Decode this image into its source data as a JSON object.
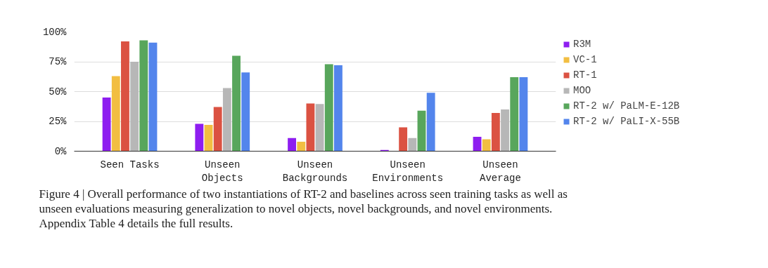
{
  "chart_data": {
    "type": "bar",
    "categories": [
      "Seen Tasks",
      "Unseen\nObjects",
      "Unseen\nBackgrounds",
      "Unseen\nEnvironments",
      "Unseen\nAverage"
    ],
    "series": [
      {
        "name": "R3M",
        "color": "#8e1ef0",
        "values": [
          45,
          23,
          11,
          1,
          12
        ]
      },
      {
        "name": "VC-1",
        "color": "#f2be42",
        "values": [
          63,
          22,
          8,
          0,
          10
        ]
      },
      {
        "name": "RT-1",
        "color": "#db5242",
        "values": [
          92,
          37,
          40,
          20,
          32
        ]
      },
      {
        "name": "MOO",
        "color": "#b7b7b7",
        "values": [
          75,
          53,
          39.5,
          11,
          35
        ]
      },
      {
        "name": "RT-2 w/ PaLM-E-12B",
        "color": "#58a65c",
        "values": [
          93,
          80,
          73,
          34,
          62
        ]
      },
      {
        "name": "RT-2 w/ PaLI-X-55B",
        "color": "#5385ec",
        "values": [
          91,
          66,
          72,
          49,
          62
        ]
      }
    ],
    "ylim": [
      0,
      100
    ],
    "yticks": [
      {
        "value": 0,
        "label": "0%"
      },
      {
        "value": 25,
        "label": "25%"
      },
      {
        "value": 50,
        "label": "50%"
      },
      {
        "value": 75,
        "label": "75%"
      },
      {
        "value": 100,
        "label": "100%"
      }
    ],
    "grid": "y",
    "legend": "right",
    "annotations": [
      "Figure 4 | Overall performance of two instantiations of RT-2 and baselines across seen training tasks as well as unseen evaluations measuring generalization to novel objects, novel backgrounds, and novel environments. Appendix Table 4 details the full results."
    ]
  }
}
